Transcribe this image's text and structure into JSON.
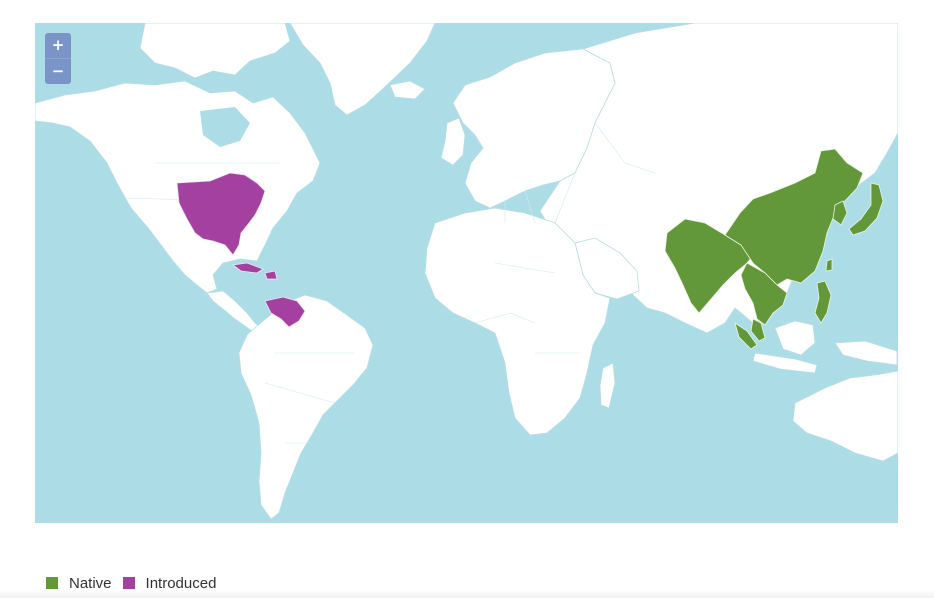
{
  "map": {
    "zoom_in_label": "+",
    "zoom_out_label": "−",
    "colors": {
      "water": "#acdde6",
      "land": "#ffffff",
      "native": "#63983a",
      "introduced": "#a441a0",
      "zoom_button": "#7b94c8"
    },
    "regions": {
      "native": [
        "India",
        "China",
        "Nepal",
        "Bhutan",
        "Bangladesh",
        "Myanmar",
        "Laos",
        "Vietnam",
        "Cambodia",
        "Korea",
        "Japan",
        "Taiwan",
        "Philippines",
        "Peninsular Malaysia",
        "Sumatra"
      ],
      "introduced": [
        "Eastern United States",
        "Cuba",
        "Hispaniola",
        "Puerto Rico",
        "Venezuela"
      ]
    }
  },
  "legend": {
    "items": [
      {
        "label": "Native",
        "color": "#63983a"
      },
      {
        "label": "Introduced",
        "color": "#a441a0"
      }
    ]
  }
}
